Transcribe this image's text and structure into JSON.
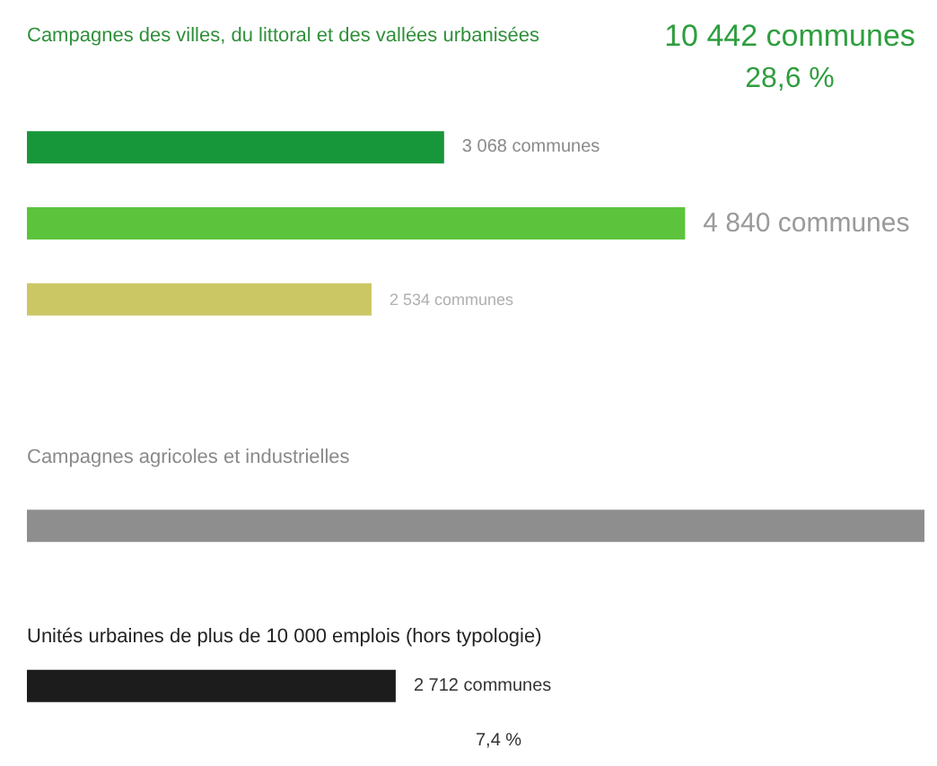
{
  "chart_data": [
    {
      "type": "bar",
      "orientation": "horizontal",
      "tick_labels": false,
      "categories": [
        null,
        null,
        null
      ],
      "values": [
        3068,
        4840,
        2534
      ],
      "colors": [
        "#17973a",
        "#5cc43c",
        "#cbc765"
      ],
      "value_labels": [
        "3 068 communes",
        "4 840 communes",
        "2 534 communes"
      ],
      "annotations": [
        "Campagnes des villes, du littoral et des vallées urbanisées",
        "10 442 communes",
        "28,6 %"
      ]
    },
    {
      "type": "bar",
      "orientation": "horizontal",
      "tick_labels": false,
      "categories": [
        null,
        null
      ],
      "values": [
        6600,
        2712
      ],
      "colors": [
        "#8e8e8e",
        "#1c1c1c"
      ],
      "value_labels": [
        null,
        "2 712 communes"
      ],
      "annotations": [
        "Campagnes agricoles et industrielles",
        "Unités urbaines de plus de 10 000 emplois (hors typologie)",
        "7,4 %"
      ]
    }
  ]
}
